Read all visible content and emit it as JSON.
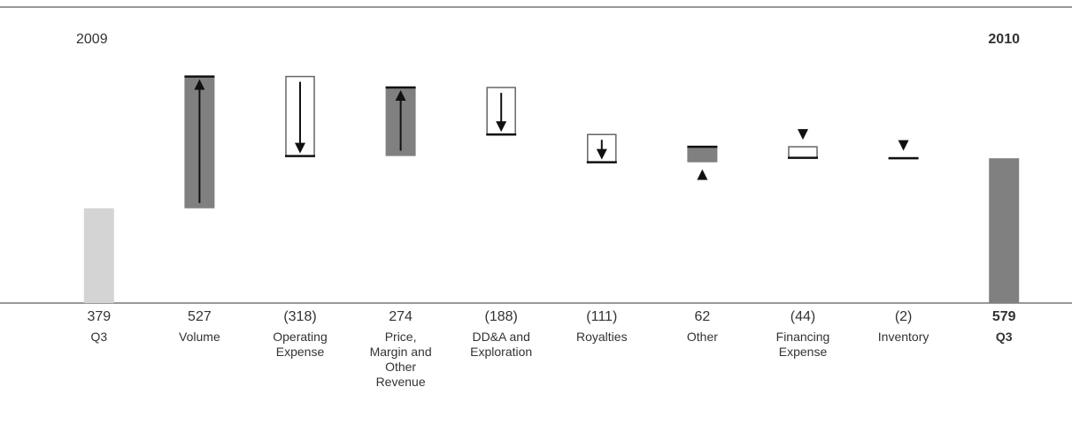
{
  "chart_data": {
    "type": "waterfall",
    "start_label": "2009",
    "end_label": "2010",
    "categories": [
      "Q3",
      "Volume",
      "Operating\nExpense",
      "Price,\nMargin and\nOther\nRevenue",
      "DD&A and\nExploration",
      "Royalties",
      "Other",
      "Financing\nExpense",
      "Inventory",
      "Q3"
    ],
    "measure": [
      "absolute",
      "relative",
      "relative",
      "relative",
      "relative",
      "relative",
      "relative",
      "relative",
      "relative",
      "total"
    ],
    "values": [
      379,
      527,
      -318,
      274,
      -188,
      -111,
      62,
      -44,
      -2,
      579
    ],
    "value_labels": [
      "379",
      "527",
      "(318)",
      "274",
      "(188)",
      "(111)",
      "62",
      "(44)",
      "(2)",
      "579"
    ],
    "colors": {
      "start": "#d4d4d4",
      "increase": "#808080",
      "decrease": "#ffffff",
      "total": "#808080"
    },
    "ylim": [
      0,
      1200
    ]
  }
}
